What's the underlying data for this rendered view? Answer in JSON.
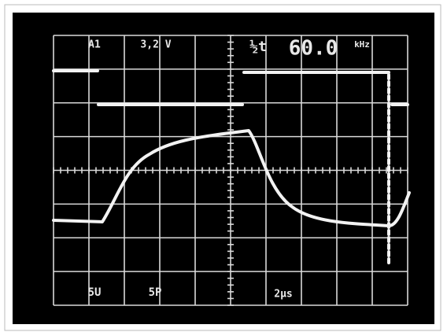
{
  "screen": {
    "top_labels": [
      "A1",
      "3,2 V",
      "½t",
      "60.0",
      "kHz"
    ],
    "bottom_labels": [
      "5U",
      "5P",
      "2μs"
    ]
  }
}
